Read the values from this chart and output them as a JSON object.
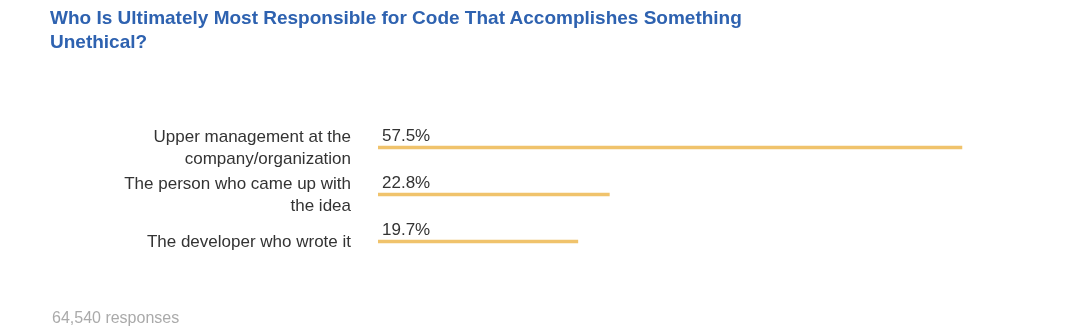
{
  "chart_data": {
    "type": "bar",
    "orientation": "horizontal",
    "title": "Who Is Ultimately Most Responsible for Code That Accomplishes Something Unethical?",
    "categories": [
      "Upper management at the company/organization",
      "The person who came up with the idea",
      "The developer who wrote it"
    ],
    "values": [
      57.5,
      22.8,
      19.7
    ],
    "value_labels": [
      "57.5%",
      "22.8%",
      "19.7%"
    ],
    "color": "#f0c36c",
    "annotations": [
      "64,540 responses"
    ]
  }
}
